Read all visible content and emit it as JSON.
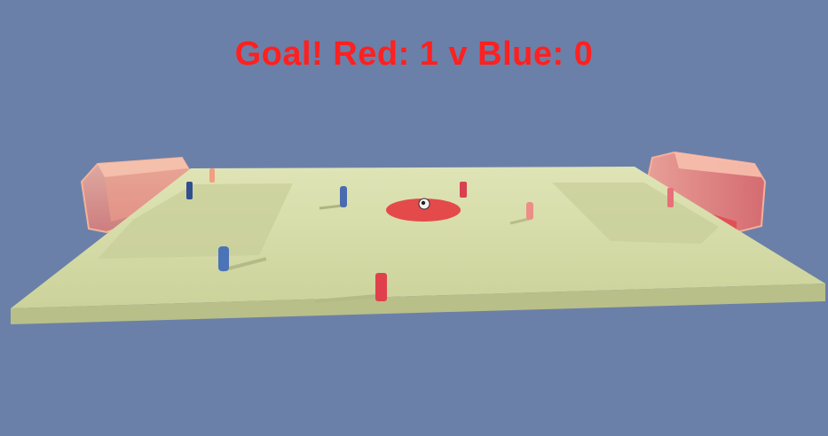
{
  "hud": {
    "score_text": "Goal! Red: 1 v Blue: 0"
  },
  "colors": {
    "sky": "#6b80a8",
    "pitch": "#d5dba3",
    "pitch_edge": "#b8be86",
    "center_circle": "#e64a4a",
    "red_team": "#e8404a",
    "blue_team": "#3f5f9f",
    "goal_frame": "#f2a58e"
  },
  "icons": {
    "ball": "soccer-ball-icon"
  }
}
